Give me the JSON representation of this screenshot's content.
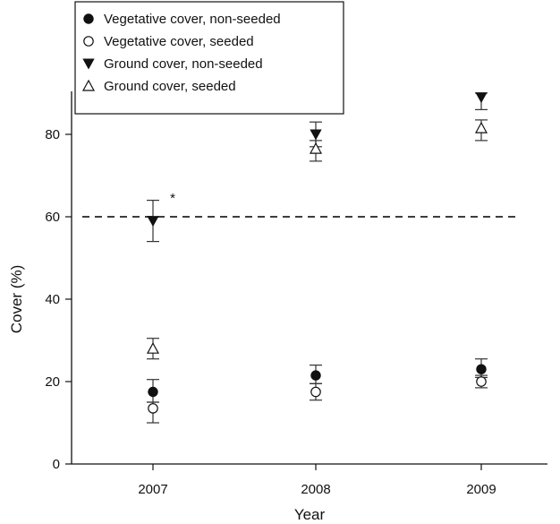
{
  "chart_data": {
    "type": "scatter",
    "xlabel": "Year",
    "ylabel": "Cover (%)",
    "categories": [
      "2007",
      "2008",
      "2009"
    ],
    "ylim": [
      0,
      90
    ],
    "yticks": [
      0,
      20,
      40,
      60,
      80
    ],
    "grid": false,
    "legend_position": "top-left",
    "reference_line": {
      "y": 60,
      "style": "dashed"
    },
    "annotations": [
      {
        "text": "*",
        "category": "2007",
        "y": 63
      }
    ],
    "series": [
      {
        "name": "Vegetative cover, non-seeded",
        "marker": "filled-circle",
        "values": [
          17.5,
          21.5,
          23.0
        ],
        "err_low": [
          15.0,
          19.5,
          21.0
        ],
        "err_high": [
          20.5,
          24.0,
          25.5
        ]
      },
      {
        "name": "Vegetative cover, seeded",
        "marker": "open-circle",
        "values": [
          13.5,
          17.5,
          20.0
        ],
        "err_low": [
          10.0,
          15.5,
          18.5
        ],
        "err_high": [
          15.0,
          19.5,
          21.5
        ]
      },
      {
        "name": "Ground cover, non-seeded",
        "marker": "filled-triangle-down",
        "values": [
          59.0,
          80.0,
          89.0
        ],
        "err_low": [
          54.0,
          77.0,
          86.0
        ],
        "err_high": [
          64.0,
          83.0,
          90.0
        ]
      },
      {
        "name": "Ground cover, seeded",
        "marker": "open-triangle-up",
        "values": [
          28.0,
          76.5,
          81.5
        ],
        "err_low": [
          25.5,
          73.5,
          78.5
        ],
        "err_high": [
          30.5,
          78.5,
          83.5
        ]
      }
    ]
  }
}
